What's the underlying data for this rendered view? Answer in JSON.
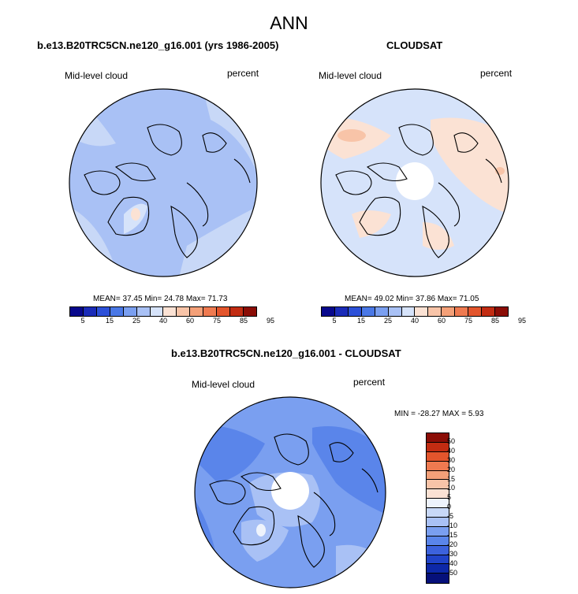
{
  "figure": {
    "title": "ANN",
    "bottom_title": "b.e13.B20TRC5CN.ne120_g16.001 - CLOUDSAT"
  },
  "colors": {
    "abs_scale": [
      "#08088c",
      "#1a2bb8",
      "#2c50d8",
      "#4a78e6",
      "#7a9ff0",
      "#a9c1f5",
      "#d6e3fa",
      "#fbe2d4",
      "#f8c4a8",
      "#f4a078",
      "#ef7a50",
      "#e3552c",
      "#c22c12",
      "#8b0d06"
    ],
    "diff_scale": [
      "#8b0d06",
      "#c22c12",
      "#e3552c",
      "#ef7a50",
      "#f4a078",
      "#f8c4a8",
      "#fbe2d4",
      "#eef3fc",
      "#c8d8f7",
      "#a9c1f5",
      "#7a9ff0",
      "#5a85ea",
      "#3c62dc",
      "#2043c8",
      "#0d28a8",
      "#06107a"
    ],
    "land_outline": "#000000"
  },
  "chart_data": [
    {
      "type": "heatmap",
      "projection": "north polar stereographic",
      "title": "b.e13.B20TRC5CN.ne120_g16.001 (yrs 1986-2005)",
      "variable": "Mid-level cloud",
      "units": "percent",
      "stats": "MEAN=  37.45  Min=  24.78  Max=  71.73",
      "mean": 37.45,
      "min": 24.78,
      "max": 71.73,
      "colorbar_ticks": [
        "5",
        "15",
        "25",
        "40",
        "60",
        "75",
        "85",
        "95"
      ]
    },
    {
      "type": "heatmap",
      "projection": "north polar stereographic",
      "title": "CLOUDSAT",
      "variable": "Mid-level cloud",
      "units": "percent",
      "stats": "MEAN=  49.02  Min=  37.86  Max=  71.05",
      "mean": 49.02,
      "min": 37.86,
      "max": 71.05,
      "colorbar_ticks": [
        "5",
        "15",
        "25",
        "40",
        "60",
        "75",
        "85",
        "95"
      ]
    },
    {
      "type": "heatmap",
      "projection": "north polar stereographic",
      "title": "b.e13.B20TRC5CN.ne120_g16.001 - CLOUDSAT",
      "variable": "Mid-level cloud",
      "units": "percent",
      "stats": "MIN = -28.27 MAX =   5.93",
      "min": -28.27,
      "max": 5.93,
      "colorbar_ticks": [
        "50",
        "40",
        "30",
        "20",
        "15",
        "10",
        "5",
        "0",
        "-5",
        "-10",
        "-15",
        "-20",
        "-30",
        "-40",
        "-50"
      ]
    }
  ]
}
